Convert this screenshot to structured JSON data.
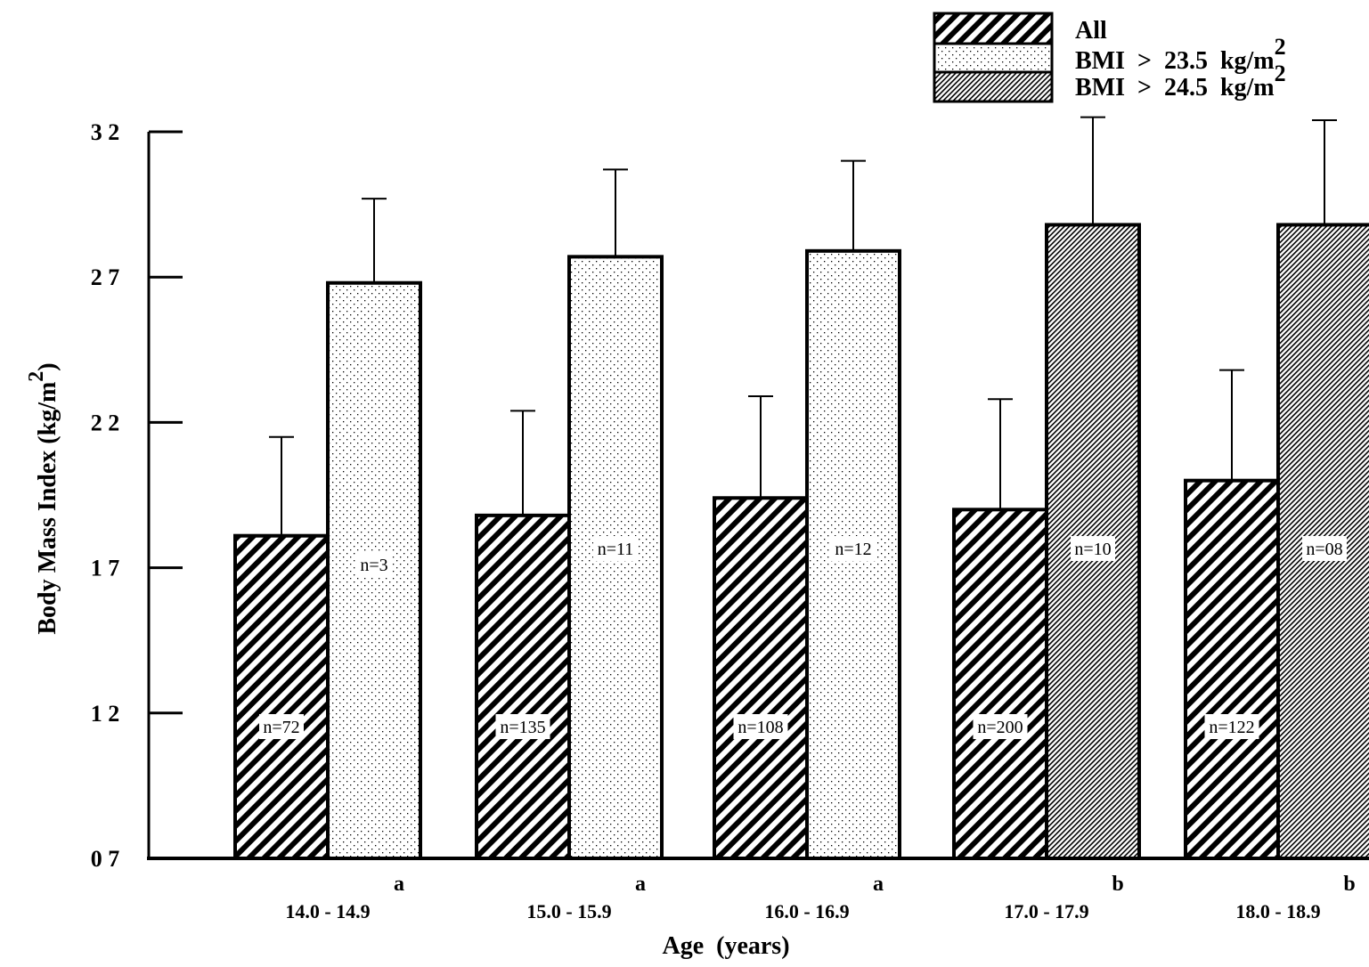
{
  "chart_data": {
    "type": "bar",
    "xlabel": "Age  (years)",
    "ylabel_main": "Body Mass Index (kg/m",
    "ylabel_sup": "2",
    "ylabel_close": ")",
    "ylim": [
      7,
      32
    ],
    "yticks": [
      7,
      12,
      17,
      22,
      27,
      32
    ],
    "ytick_labels": [
      "0 7",
      "1 2",
      "1 7",
      "2 2",
      "2 7",
      "3 2"
    ],
    "grid": false,
    "legend_position": "top-right",
    "legend": [
      {
        "key": "all",
        "text": "All",
        "sup": ""
      },
      {
        "key": "bmi235",
        "text": "BMI  >  23.5  kg/m",
        "sup": "2"
      },
      {
        "key": "bmi245",
        "text": "BMI  >  24.5  kg/m",
        "sup": "2"
      }
    ],
    "categories": [
      {
        "label": "14.0  -  14.9",
        "sup": "a"
      },
      {
        "label": "15.0  -  15.9",
        "sup": "a"
      },
      {
        "label": "16.0  -  16.9",
        "sup": "a"
      },
      {
        "label": "17.0  -  17.9",
        "sup": "b"
      },
      {
        "label": "18.0  -  18.9",
        "sup": "b"
      }
    ],
    "groups": [
      {
        "all": {
          "value": 18.1,
          "err": 3.4,
          "n_label": "n=72"
        },
        "sub": {
          "pattern": "bmi235",
          "value": 26.8,
          "err": 2.9,
          "n_label": "n=3"
        }
      },
      {
        "all": {
          "value": 18.8,
          "err": 3.6,
          "n_label": "n=135"
        },
        "sub": {
          "pattern": "bmi235",
          "value": 27.7,
          "err": 3.0,
          "n_label": "n=11"
        }
      },
      {
        "all": {
          "value": 19.4,
          "err": 3.5,
          "n_label": "n=108"
        },
        "sub": {
          "pattern": "bmi235",
          "value": 27.9,
          "err": 3.1,
          "n_label": "n=12"
        }
      },
      {
        "all": {
          "value": 19.0,
          "err": 3.8,
          "n_label": "n=200"
        },
        "sub": {
          "pattern": "bmi245",
          "value": 28.8,
          "err": 3.7,
          "n_label": "n=10"
        }
      },
      {
        "all": {
          "value": 20.0,
          "err": 3.8,
          "n_label": "n=122"
        },
        "sub": {
          "pattern": "bmi245",
          "value": 28.8,
          "err": 3.6,
          "n_label": "n=08"
        }
      }
    ]
  }
}
